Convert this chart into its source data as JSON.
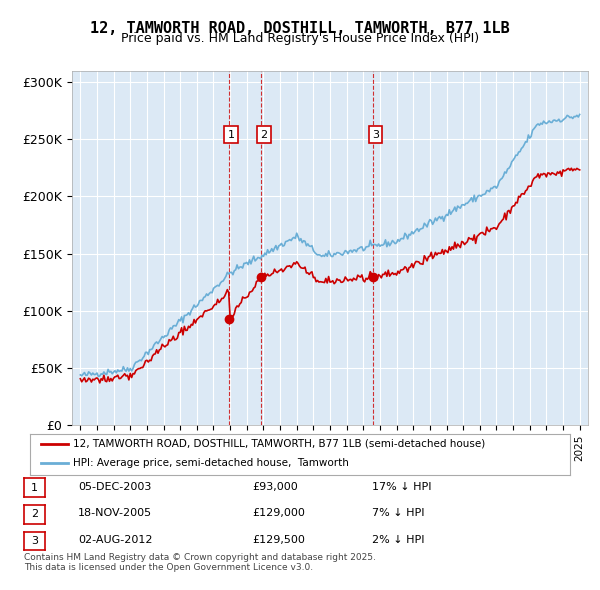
{
  "title": "12, TAMWORTH ROAD, DOSTHILL, TAMWORTH, B77 1LB",
  "subtitle": "Price paid vs. HM Land Registry's House Price Index (HPI)",
  "ylabel": "",
  "background_color": "#dce9f5",
  "plot_bg_color": "#dce9f5",
  "yticks": [
    0,
    50000,
    100000,
    150000,
    200000,
    250000,
    300000
  ],
  "ytick_labels": [
    "£0",
    "£50K",
    "£100K",
    "£150K",
    "£200K",
    "£250K",
    "£300K"
  ],
  "hpi_color": "#6aaed6",
  "price_color": "#cc0000",
  "sale_marker_color": "#cc0000",
  "vline_color": "#cc0000",
  "annotation_box_color": "#cc0000",
  "sales": [
    {
      "num": 1,
      "date_num": 2003.92,
      "price": 93000,
      "label": "05-DEC-2003",
      "pct": "17% ↓ HPI"
    },
    {
      "num": 2,
      "date_num": 2005.88,
      "price": 129000,
      "label": "18-NOV-2005",
      "pct": "7% ↓ HPI"
    },
    {
      "num": 3,
      "date_num": 2012.58,
      "price": 129500,
      "label": "02-AUG-2012",
      "pct": "2% ↓ HPI"
    }
  ],
  "legend_entries": [
    "12, TAMWORTH ROAD, DOSTHILL, TAMWORTH, B77 1LB (semi-detached house)",
    "HPI: Average price, semi-detached house,  Tamworth"
  ],
  "footer": "Contains HM Land Registry data © Crown copyright and database right 2025.\nThis data is licensed under the Open Government Licence v3.0.",
  "xlim": [
    1994.5,
    2025.5
  ],
  "ylim": [
    0,
    310000
  ]
}
